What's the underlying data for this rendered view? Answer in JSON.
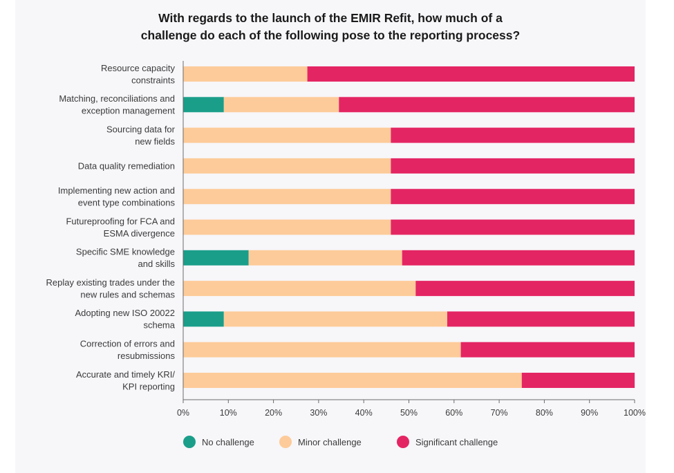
{
  "title": {
    "line1": "With regards to the launch of the EMIR Refit, how much of a",
    "line2": "challenge do each of the following pose to the reporting process?"
  },
  "colors": {
    "no_challenge": "#1a9e8a",
    "minor_challenge": "#fdcb99",
    "significant_challenge": "#e42563",
    "axis": "#6b6b6b",
    "text": "#3a3a3a"
  },
  "legend": [
    {
      "label": "No challenge",
      "color": "#1a9e8a"
    },
    {
      "label": "Minor challenge",
      "color": "#fdcb99"
    },
    {
      "label": "Significant challenge",
      "color": "#e42563"
    }
  ],
  "chart_data": {
    "type": "bar",
    "orientation": "horizontal",
    "stacked": true,
    "title": "With regards to the launch of the EMIR Refit, how much of a challenge do each of the following pose to the reporting process?",
    "categories": [
      [
        "Resource capacity",
        "constraints"
      ],
      [
        "Matching, reconciliations and",
        "exception management"
      ],
      [
        "Sourcing data for",
        "new fields"
      ],
      [
        "Data quality remediation"
      ],
      [
        "Implementing new action and",
        "event type combinations"
      ],
      [
        "Futureproofing for FCA and",
        "ESMA divergence"
      ],
      [
        "Specific SME knowledge",
        "and skills"
      ],
      [
        "Replay existing trades under the",
        "new rules and schemas"
      ],
      [
        "Adopting new ISO 20022",
        "schema"
      ],
      [
        "Correction of errors and",
        "resubmissions"
      ],
      [
        "Accurate and timely KRI/",
        "KPI reporting"
      ]
    ],
    "series": [
      {
        "name": "No challenge",
        "values": [
          0,
          9,
          0,
          0,
          0,
          0,
          14.5,
          0,
          9,
          0,
          0
        ]
      },
      {
        "name": "Minor challenge",
        "values": [
          27.5,
          25.5,
          46,
          46,
          46,
          46,
          34,
          51.5,
          49.5,
          61.5,
          75
        ]
      },
      {
        "name": "Significant challenge",
        "values": [
          72.5,
          65.5,
          54,
          54,
          54,
          54,
          51.5,
          48.5,
          41.5,
          38.5,
          25
        ]
      }
    ],
    "xlim": [
      0,
      100
    ],
    "xticks": [
      "0%",
      "10%",
      "20%",
      "30%",
      "40%",
      "50%",
      "60%",
      "70%",
      "80%",
      "90%",
      "100%"
    ],
    "legend_position": "bottom",
    "grid": false
  }
}
